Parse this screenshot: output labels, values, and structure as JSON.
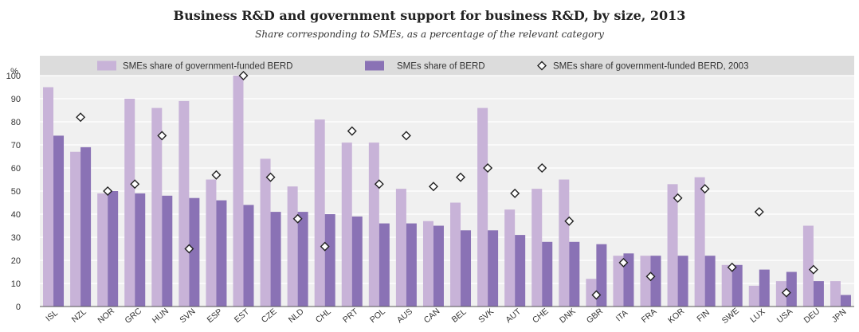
{
  "title": "Business R&D and government support for business R&D, by size, 2013",
  "subtitle": "Share corresponding to SMEs, as a percentage of the relevant category",
  "colors": {
    "light": "#c8b3d8",
    "dark": "#8a72b5",
    "legend_bg": "#dcdcdc",
    "plot_bg": "#f0f0f0",
    "grid": "#ffffff",
    "text": "#333333"
  },
  "chart_data": {
    "type": "bar",
    "title": "Business R&D and government support for business R&D, by size, 2013",
    "ylabel": "%",
    "ylim": [
      0,
      100
    ],
    "yticks": [
      0,
      10,
      20,
      30,
      40,
      50,
      60,
      70,
      80,
      90,
      100
    ],
    "categories": [
      "ISL",
      "NZL",
      "NOR",
      "GRC",
      "HUN",
      "SVN",
      "ESP",
      "EST",
      "CZE",
      "NLD",
      "CHL",
      "PRT",
      "POL",
      "AUS",
      "CAN",
      "BEL",
      "SVK",
      "AUT",
      "CHE",
      "DNK",
      "GBR",
      "ITA",
      "FRA",
      "KOR",
      "FIN",
      "SWE",
      "LUX",
      "USA",
      "DEU",
      "JPN"
    ],
    "series": [
      {
        "name": "SMEs share of government-funded BERD",
        "type": "bar",
        "color": "#c8b3d8",
        "values": [
          95,
          67,
          49,
          90,
          86,
          89,
          55,
          100,
          64,
          52,
          81,
          71,
          71,
          51,
          37,
          45,
          86,
          42,
          51,
          55,
          12,
          22,
          22,
          53,
          56,
          18,
          9,
          11,
          35,
          11
        ]
      },
      {
        "name": "SMEs share of BERD",
        "type": "bar",
        "color": "#8a72b5",
        "values": [
          74,
          69,
          50,
          49,
          48,
          47,
          46,
          44,
          41,
          41,
          40,
          39,
          36,
          36,
          35,
          33,
          33,
          31,
          28,
          28,
          27,
          23,
          22,
          22,
          22,
          18,
          16,
          15,
          11,
          5
        ]
      },
      {
        "name": "SMEs share of government-funded BERD, 2003",
        "type": "marker",
        "marker": "diamond",
        "values": [
          null,
          82,
          50,
          53,
          74,
          25,
          57,
          100,
          56,
          38,
          26,
          76,
          53,
          74,
          52,
          56,
          60,
          49,
          60,
          37,
          5,
          19,
          13,
          47,
          51,
          17,
          41,
          6,
          16,
          null
        ]
      }
    ],
    "legend_position": "top",
    "grid": true
  }
}
